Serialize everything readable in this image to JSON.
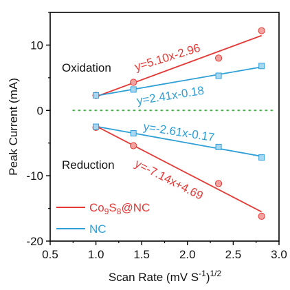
{
  "chart_data": {
    "type": "scatter",
    "xlabel": "Scan Rate (mV S",
    "xlabel_sup": "-1",
    "xlabel_tail": ")",
    "xlabel_sup2": "1/2",
    "ylabel": "Peak Current (mA)",
    "xlim": [
      0.5,
      3.0
    ],
    "ylim": [
      -20,
      15
    ],
    "xticks": [
      "0.5",
      "1.0",
      "1.5",
      "2.0",
      "2.5",
      "3.0"
    ],
    "yticks": [
      "-20",
      "-10",
      "0",
      "10"
    ],
    "xtick_values": [
      0.5,
      1.0,
      1.5,
      2.0,
      2.5,
      3.0
    ],
    "ytick_values": [
      -20,
      -10,
      0,
      10
    ],
    "grid": false,
    "legend_position": "bottom-left",
    "zero_line": {
      "y": 0,
      "x_range": [
        0.75,
        2.95
      ],
      "color": "#4caf50",
      "style": "dotted"
    },
    "series": [
      {
        "name_main": "Co",
        "name_sub1": "9",
        "name_mid": "S",
        "name_sub2": "8",
        "name_tail": "@NC",
        "color": "#e53935",
        "marker_fill": "#f2a3a0",
        "marker": "circle",
        "oxidation_points": [
          [
            1.0,
            2.3
          ],
          [
            1.41,
            4.3
          ],
          [
            2.34,
            8.0
          ],
          [
            2.81,
            12.2
          ]
        ],
        "reduction_points": [
          [
            1.0,
            -2.6
          ],
          [
            1.41,
            -5.4
          ],
          [
            2.34,
            -11.2
          ],
          [
            2.81,
            -16.2
          ]
        ],
        "oxidation_fit": {
          "slope": 5.1,
          "intercept": -2.96
        },
        "reduction_fit": {
          "slope": -7.14,
          "intercept": 4.69
        }
      },
      {
        "name": "NC",
        "color": "#2f9fd8",
        "marker_fill": "#a9d6f0",
        "marker": "square",
        "oxidation_points": [
          [
            1.0,
            2.3
          ],
          [
            1.41,
            3.2
          ],
          [
            2.34,
            5.3
          ],
          [
            2.81,
            6.8
          ]
        ],
        "reduction_points": [
          [
            1.0,
            -2.5
          ],
          [
            1.41,
            -3.5
          ],
          [
            2.34,
            -5.6
          ],
          [
            2.81,
            -7.2
          ]
        ],
        "oxidation_fit": {
          "slope": 2.41,
          "intercept": -0.18
        },
        "reduction_fit": {
          "slope": -2.61,
          "intercept": -0.17
        }
      }
    ],
    "annotations": {
      "oxidation_label": "Oxidation",
      "reduction_label": "Reduction",
      "cos_ox_eq": "y=5.10x-2.96",
      "nc_ox_eq": "y=2.41x-0.18",
      "nc_red_eq": "y=-2.61x-0.17",
      "cos_red_eq": "y=-7.14x+4.69"
    }
  }
}
